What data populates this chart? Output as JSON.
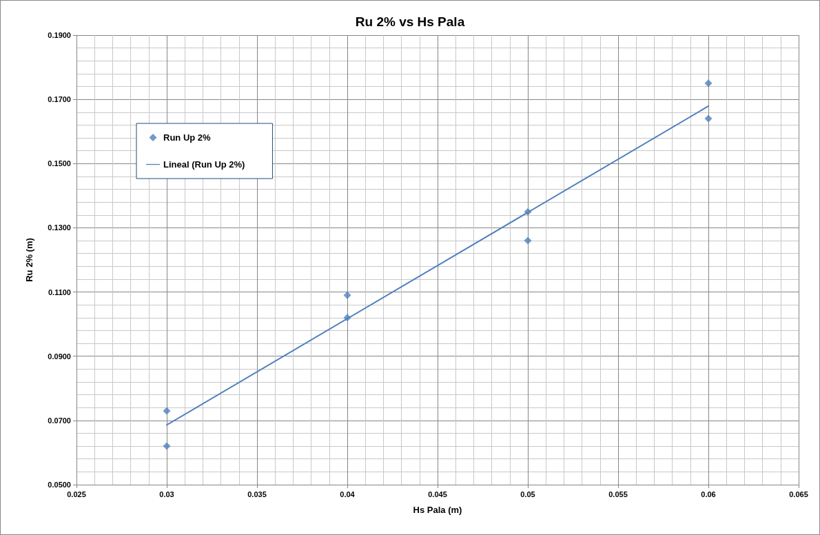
{
  "chart_data": {
    "type": "scatter",
    "title": "Ru 2% vs Hs Pala",
    "xlabel": "Hs Pala (m)",
    "ylabel": "Ru 2% (m)",
    "series": [
      {
        "name": "Run Up 2%",
        "color": "#4f81bd",
        "marker": "diamond",
        "x": [
          0.03,
          0.03,
          0.04,
          0.04,
          0.05,
          0.05,
          0.06,
          0.06
        ],
        "values": [
          0.073,
          0.062,
          0.109,
          0.102,
          0.135,
          0.126,
          0.175,
          0.164
        ]
      },
      {
        "name": "Lineal (Run Up 2%)",
        "type": "line",
        "color": "#4f81bd",
        "marker": "none",
        "line_style": "solid",
        "x": [
          0.03,
          0.06
        ],
        "values": [
          0.0686,
          0.1679
        ]
      }
    ],
    "xlim": [
      0.025,
      0.065
    ],
    "xticks": [
      0.025,
      0.03,
      0.035,
      0.04,
      0.045,
      0.05,
      0.055,
      0.06,
      0.065
    ],
    "ylim": [
      0.05,
      0.19
    ],
    "yticks": [
      {
        "value": 0.05,
        "label": "0.0500"
      },
      {
        "value": 0.07,
        "label": "0.0700"
      },
      {
        "value": 0.09,
        "label": "0.0900"
      },
      {
        "value": 0.11,
        "label": "0.1100"
      },
      {
        "value": 0.13,
        "label": "0.1300"
      },
      {
        "value": 0.15,
        "label": "0.1500"
      },
      {
        "value": 0.17,
        "label": "0.1700"
      },
      {
        "value": 0.19,
        "label": "0.1900"
      }
    ],
    "grid": true,
    "legend": "top left"
  }
}
